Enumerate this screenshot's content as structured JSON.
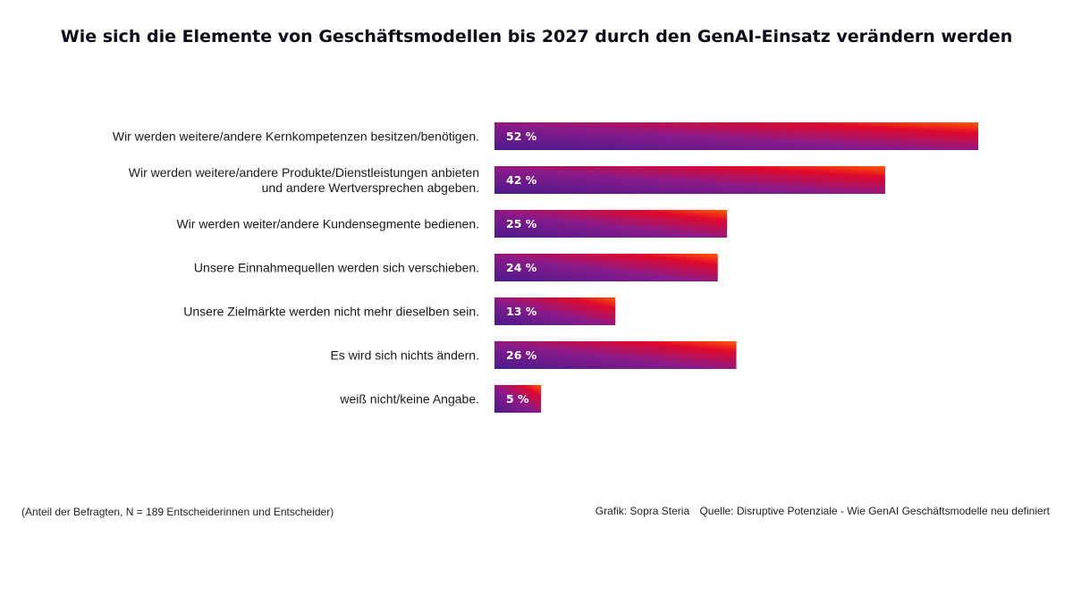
{
  "chart_data": {
    "type": "bar",
    "orientation": "horizontal",
    "title": "Wie sich die Elemente von Geschäftsmodellen bis 2027 durch den GenAI-Einsatz verändern werden",
    "categories": [
      [
        "Wir werden weitere/andere Kernkompetenzen besitzen/benötigen."
      ],
      [
        "Wir werden weitere/andere Produkte/Dienstleistungen anbieten",
        "und andere Wertversprechen abgeben."
      ],
      [
        "Wir werden weiter/andere Kundensegmente bedienen."
      ],
      [
        "Unsere Einnahmequellen werden sich verschieben."
      ],
      [
        "Unsere Zielmärkte werden nicht mehr dieselben sein."
      ],
      [
        "Es wird sich nichts ändern."
      ],
      [
        "weiß nicht/keine Angabe."
      ]
    ],
    "values": [
      52,
      42,
      25,
      24,
      13,
      26,
      5
    ],
    "value_labels": [
      "52 %",
      "42 %",
      "25 %",
      "24 %",
      "13 %",
      "26 %",
      "5 %"
    ],
    "unit": "%",
    "xlim": [
      0,
      52
    ],
    "grid": false,
    "bar_gradient": [
      "#4a1a8c",
      "#8a1a8a",
      "#e0082c",
      "#ff5a00"
    ]
  },
  "footnote": "(Anteil der Befragten, N = 189 Entscheiderinnen und Entscheider)",
  "credit": {
    "grafik": "Grafik: Sopra Steria",
    "quelle": "Quelle: Disruptive Potenziale - Wie GenAI Geschäftsmodelle neu definiert"
  }
}
